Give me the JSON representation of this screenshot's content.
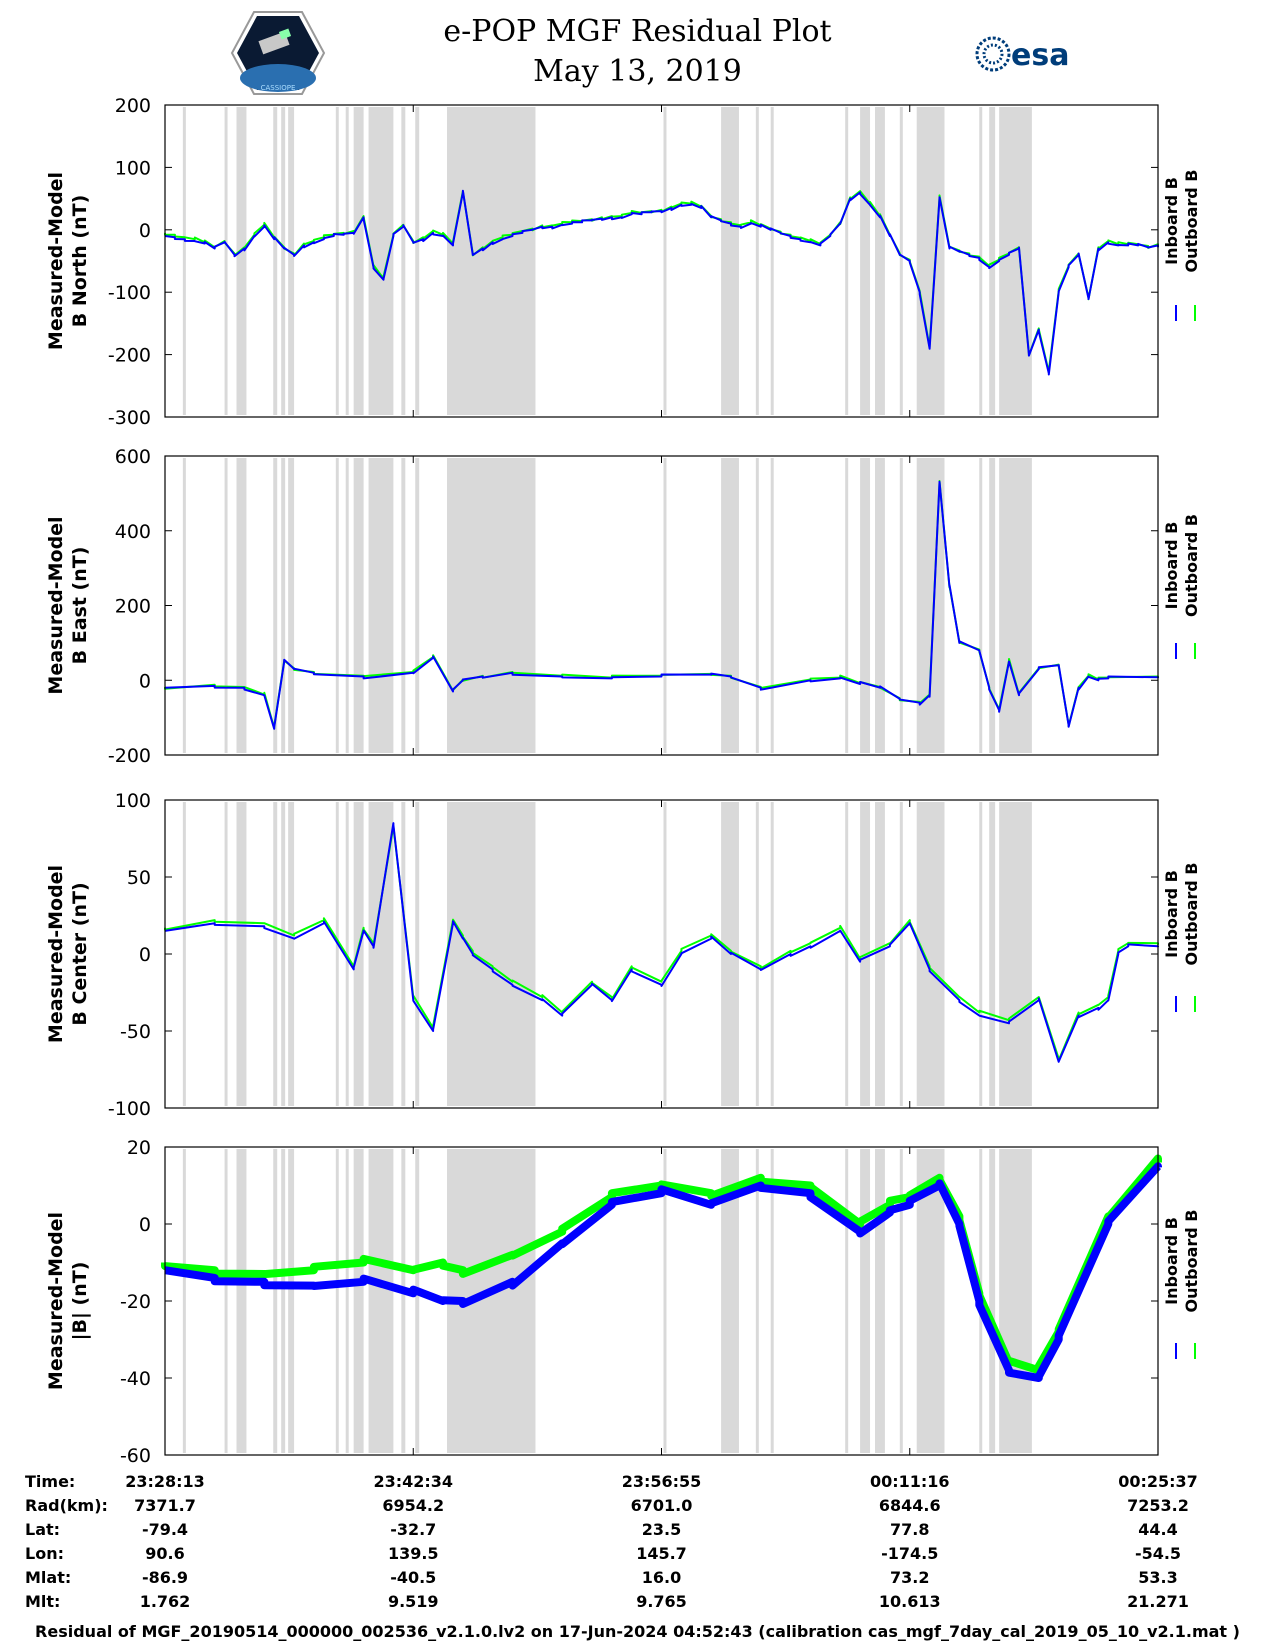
{
  "header": {
    "title_line1": "e-POP MGF Residual Plot",
    "title_line2": "May 13, 2019",
    "logo_left_text": "CASSIOPE",
    "logo_right_text": "esa"
  },
  "colors": {
    "inboard": "#0000ff",
    "outboard": "#00ff00",
    "shade": "#d9d9d9",
    "axis": "#000000"
  },
  "legend": {
    "inboard": "Inboard B",
    "outboard": "Outboard B"
  },
  "chart_data": [
    {
      "type": "line",
      "ylabel_line1": "Measured-Model",
      "ylabel_line2": "B North (nT)",
      "ylim": [
        -300,
        200
      ],
      "yticks": [
        200,
        100,
        0,
        -100,
        -200,
        -300
      ],
      "x": [
        0,
        0.01,
        0.02,
        0.03,
        0.04,
        0.05,
        0.06,
        0.07,
        0.08,
        0.09,
        0.1,
        0.11,
        0.12,
        0.13,
        0.14,
        0.15,
        0.16,
        0.17,
        0.18,
        0.19,
        0.2,
        0.21,
        0.22,
        0.23,
        0.24,
        0.25,
        0.26,
        0.27,
        0.28,
        0.29,
        0.3,
        0.31,
        0.32,
        0.33,
        0.34,
        0.35,
        0.36,
        0.37,
        0.38,
        0.39,
        0.4,
        0.41,
        0.42,
        0.43,
        0.44,
        0.45,
        0.46,
        0.47,
        0.48,
        0.49,
        0.5,
        0.51,
        0.52,
        0.53,
        0.54,
        0.55,
        0.56,
        0.57,
        0.58,
        0.59,
        0.6,
        0.61,
        0.62,
        0.63,
        0.64,
        0.65,
        0.66,
        0.67,
        0.68,
        0.69,
        0.7,
        0.71,
        0.72,
        0.73,
        0.74,
        0.75,
        0.76,
        0.77,
        0.78,
        0.79,
        0.8,
        0.81,
        0.82,
        0.83,
        0.84,
        0.85,
        0.86,
        0.87,
        0.88,
        0.89,
        0.9,
        0.91,
        0.92,
        0.93,
        0.94,
        0.95,
        0.96,
        0.97,
        0.98,
        0.99,
        1
      ],
      "series": [
        {
          "name": "Inboard B",
          "values": [
            -10,
            -12,
            -15,
            -18,
            -22,
            -30,
            -20,
            -40,
            -30,
            -10,
            5,
            -15,
            -30,
            -40,
            -25,
            -20,
            -15,
            -10,
            -8,
            -5,
            20,
            -60,
            -80,
            -10,
            5,
            -20,
            -15,
            -5,
            -10,
            -25,
            60,
            -40,
            -30,
            -20,
            -15,
            -10,
            -5,
            0,
            5,
            5,
            8,
            10,
            12,
            15,
            18,
            20,
            20,
            25,
            25,
            28,
            30,
            35,
            40,
            40,
            35,
            20,
            15,
            10,
            5,
            10,
            5,
            0,
            -5,
            -10,
            -15,
            -20,
            -25,
            -10,
            10,
            50,
            60,
            40,
            20,
            -10,
            -40,
            -50,
            -100,
            -190,
            50,
            -30,
            -35,
            -40,
            -45,
            -60,
            -50,
            -40,
            -30,
            -200,
            -160,
            -230,
            -100,
            -60,
            -40,
            -110,
            -30,
            -20,
            -25,
            -25,
            -25,
            -28,
            -25
          ]
        },
        {
          "name": "Outboard B",
          "values": [
            -5,
            -8,
            -12,
            -15,
            -20,
            -28,
            -18,
            -38,
            -28,
            -8,
            8,
            -12,
            -28,
            -38,
            -22,
            -18,
            -12,
            -8,
            -5,
            -2,
            22,
            -58,
            -78,
            -8,
            8,
            -18,
            -12,
            -2,
            -8,
            -22,
            62,
            -38,
            -28,
            -18,
            -12,
            -8,
            -2,
            2,
            7,
            7,
            10,
            12,
            14,
            17,
            20,
            22,
            22,
            27,
            27,
            30,
            32,
            37,
            42,
            42,
            37,
            22,
            17,
            12,
            7,
            12,
            7,
            2,
            -3,
            -8,
            -13,
            -18,
            -23,
            -8,
            12,
            52,
            62,
            42,
            22,
            -8,
            -38,
            -48,
            -98,
            -188,
            52,
            -28,
            -33,
            -38,
            -43,
            -58,
            -48,
            -38,
            -28,
            -198,
            -158,
            -228,
            -98,
            -58,
            -38,
            -108,
            -28,
            -18,
            -23,
            -23,
            -23,
            -26,
            -23
          ]
        }
      ]
    },
    {
      "type": "line",
      "ylabel_line1": "Measured-Model",
      "ylabel_line2": "B East (nT)",
      "ylim": [
        -200,
        600
      ],
      "yticks": [
        600,
        400,
        200,
        0,
        -200
      ],
      "x": [
        0,
        0.05,
        0.08,
        0.1,
        0.11,
        0.12,
        0.13,
        0.15,
        0.2,
        0.25,
        0.27,
        0.29,
        0.3,
        0.32,
        0.35,
        0.4,
        0.45,
        0.5,
        0.55,
        0.57,
        0.6,
        0.65,
        0.68,
        0.7,
        0.72,
        0.74,
        0.76,
        0.77,
        0.78,
        0.79,
        0.8,
        0.82,
        0.83,
        0.84,
        0.85,
        0.86,
        0.88,
        0.9,
        0.91,
        0.92,
        0.93,
        0.94,
        0.95,
        1
      ],
      "series": [
        {
          "name": "Inboard B",
          "values": [
            -20,
            -15,
            -20,
            -40,
            -130,
            50,
            30,
            20,
            10,
            20,
            60,
            -30,
            0,
            10,
            20,
            10,
            5,
            10,
            15,
            10,
            -20,
            0,
            5,
            -10,
            -20,
            -50,
            -60,
            -40,
            530,
            250,
            100,
            80,
            -20,
            -80,
            50,
            -40,
            30,
            40,
            -120,
            -20,
            10,
            0,
            5,
            8
          ]
        },
        {
          "name": "Outboard B",
          "values": [
            -18,
            -12,
            -18,
            -38,
            -128,
            52,
            32,
            22,
            12,
            22,
            62,
            -28,
            2,
            12,
            22,
            12,
            7,
            12,
            17,
            12,
            -18,
            2,
            7,
            -8,
            -18,
            -48,
            -58,
            -38,
            528,
            248,
            102,
            82,
            -18,
            -78,
            52,
            -38,
            32,
            42,
            -118,
            -18,
            12,
            2,
            7,
            10
          ]
        }
      ]
    },
    {
      "type": "line",
      "ylabel_line1": "Measured-Model",
      "ylabel_line2": "B Center (nT)",
      "ylim": [
        -100,
        100
      ],
      "yticks": [
        100,
        50,
        0,
        -50,
        -100
      ],
      "x": [
        0,
        0.05,
        0.1,
        0.13,
        0.16,
        0.19,
        0.2,
        0.21,
        0.23,
        0.25,
        0.27,
        0.29,
        0.3,
        0.31,
        0.33,
        0.35,
        0.38,
        0.4,
        0.43,
        0.45,
        0.47,
        0.5,
        0.52,
        0.55,
        0.57,
        0.6,
        0.63,
        0.65,
        0.68,
        0.7,
        0.73,
        0.75,
        0.77,
        0.8,
        0.82,
        0.85,
        0.88,
        0.9,
        0.92,
        0.94,
        0.95,
        0.96,
        0.97,
        1
      ],
      "series": [
        {
          "name": "Inboard B",
          "values": [
            15,
            20,
            18,
            10,
            20,
            -10,
            15,
            5,
            85,
            -30,
            -50,
            20,
            10,
            0,
            -10,
            -20,
            -30,
            -40,
            -20,
            -30,
            -10,
            -20,
            0,
            10,
            0,
            -10,
            0,
            5,
            15,
            -5,
            5,
            20,
            -10,
            -30,
            -40,
            -45,
            -30,
            -70,
            -40,
            -35,
            -30,
            0,
            5,
            5
          ]
        },
        {
          "name": "Outboard B",
          "values": [
            17,
            22,
            20,
            12,
            22,
            -8,
            17,
            7,
            83,
            -28,
            -48,
            22,
            12,
            2,
            -8,
            -18,
            -28,
            -38,
            -18,
            -28,
            -8,
            -18,
            2,
            12,
            2,
            -8,
            2,
            7,
            17,
            -3,
            7,
            22,
            -8,
            -28,
            -38,
            -43,
            -28,
            -68,
            -38,
            -33,
            -28,
            2,
            7,
            7
          ]
        }
      ]
    },
    {
      "type": "line",
      "ylabel_line1": "Measured-Model",
      "ylabel_line2": "|B| (nT)",
      "ylim": [
        -60,
        20
      ],
      "yticks": [
        20,
        0,
        -20,
        -40,
        -60
      ],
      "x": [
        0,
        0.05,
        0.1,
        0.15,
        0.2,
        0.25,
        0.28,
        0.3,
        0.35,
        0.4,
        0.45,
        0.5,
        0.55,
        0.6,
        0.65,
        0.7,
        0.73,
        0.75,
        0.78,
        0.8,
        0.82,
        0.85,
        0.88,
        0.9,
        0.95,
        1
      ],
      "series": [
        {
          "name": "Inboard B",
          "values": [
            -12,
            -14,
            -15,
            -16,
            -15,
            -18,
            -20,
            -20,
            -15,
            -5,
            5,
            8,
            5,
            10,
            8,
            -2,
            3,
            5,
            10,
            0,
            -20,
            -38,
            -40,
            -30,
            0,
            15
          ]
        },
        {
          "name": "Outboard B",
          "values": [
            -10,
            -12,
            -13,
            -12,
            -10,
            -12,
            -10,
            -12,
            -8,
            -2,
            7,
            10,
            8,
            12,
            10,
            0,
            5,
            7,
            12,
            2,
            -18,
            -36,
            -38,
            -28,
            2,
            17
          ]
        }
      ]
    }
  ],
  "shaded_intervals": [
    [
      0.018,
      0.021
    ],
    [
      0.06,
      0.063
    ],
    [
      0.072,
      0.082
    ],
    [
      0.109,
      0.113
    ],
    [
      0.117,
      0.121
    ],
    [
      0.124,
      0.13
    ],
    [
      0.172,
      0.175
    ],
    [
      0.182,
      0.185
    ],
    [
      0.19,
      0.2
    ],
    [
      0.205,
      0.23
    ],
    [
      0.238,
      0.242
    ],
    [
      0.252,
      0.256
    ],
    [
      0.284,
      0.373
    ],
    [
      0.37,
      0.373
    ],
    [
      0.502,
      0.505
    ],
    [
      0.56,
      0.578
    ],
    [
      0.595,
      0.598
    ],
    [
      0.61,
      0.613
    ],
    [
      0.685,
      0.688
    ],
    [
      0.7,
      0.71
    ],
    [
      0.715,
      0.725
    ],
    [
      0.74,
      0.743
    ],
    [
      0.757,
      0.785
    ],
    [
      0.82,
      0.823
    ],
    [
      0.83,
      0.836
    ],
    [
      0.84,
      0.873
    ]
  ],
  "x_ticks": [
    "23:28:13",
    "23:42:34",
    "23:56:55",
    "00:11:16",
    "00:25:37"
  ],
  "table": {
    "row_labels": [
      "Time:",
      "Rad(km):",
      "Lat:",
      "Lon:",
      "Mlat:",
      "Mlt:"
    ],
    "columns": [
      [
        "23:28:13",
        "7371.7",
        "-79.4",
        "90.6",
        "-86.9",
        "1.762"
      ],
      [
        "23:42:34",
        "6954.2",
        "-32.7",
        "139.5",
        "-40.5",
        "9.519"
      ],
      [
        "23:56:55",
        "6701.0",
        "23.5",
        "145.7",
        "16.0",
        "9.765"
      ],
      [
        "00:11:16",
        "6844.6",
        "77.8",
        "-174.5",
        "73.2",
        "10.613"
      ],
      [
        "00:25:37",
        "7253.2",
        "44.4",
        "-54.5",
        "53.3",
        "21.271"
      ]
    ]
  },
  "footer": "Residual of MGF_20190514_000000_002536_v2.1.0.lv2 on 17-Jun-2024 04:52:43 (calibration cas_mgf_7day_cal_2019_05_10_v2.1.mat )"
}
